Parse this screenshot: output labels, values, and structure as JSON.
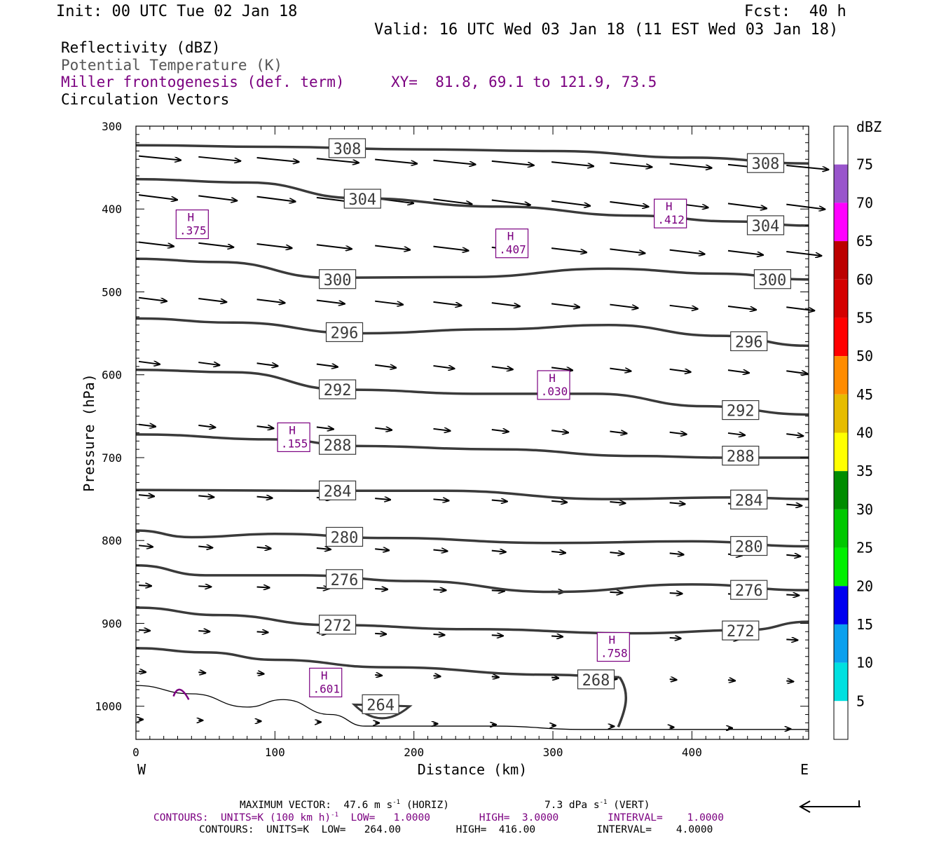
{
  "header": {
    "init": "Init: 00 UTC Tue 02 Jan 18",
    "fcst": "Fcst:  40 h",
    "valid": "Valid: 16 UTC Wed 03 Jan 18 (11 EST Wed 03 Jan 18)"
  },
  "fields": {
    "reflectivity": "Reflectivity (dBZ)",
    "theta": "Potential Temperature (K)",
    "miller": "Miller frontogenesis (def. term)",
    "xy": "XY=  81.8, 69.1 to 121.9, 73.5",
    "circulation": "Circulation Vectors"
  },
  "footer": {
    "maxvec_text": "MAXIMUM VECTOR:  47.6 m s",
    "maxvec_sup1": "-1",
    "maxvec_mid": " (HORIZ)",
    "maxvec_vert": "7.3 dPa s",
    "maxvec_sup2": "-1",
    "maxvec_end": " (VERT)",
    "contours_fg": "CONTOURS:  UNITS=K (100 km h)",
    "contours_fg_sup": "-1",
    "contours_fg_rest": "  LOW=   1.0000        HIGH=  3.0000        INTERVAL=    1.0000",
    "contours_th": "CONTOURS:  UNITS=K  LOW=   264.00         HIGH=  416.00          INTERVAL=    4.0000"
  },
  "chart_data": {
    "type": "cross-section",
    "xlabel": "Distance (km)",
    "ylabel": "Pressure (hPa)",
    "x_left_label": "W",
    "x_right_label": "E",
    "xlim": [
      0,
      484
    ],
    "ylim": [
      1040,
      300
    ],
    "x_ticks": [
      0,
      100,
      200,
      300,
      400
    ],
    "y_ticks": [
      300,
      400,
      500,
      600,
      700,
      800,
      900,
      1000
    ],
    "colorbar": {
      "unit": "dBZ",
      "levels": [
        5,
        10,
        15,
        20,
        25,
        30,
        35,
        40,
        45,
        50,
        55,
        60,
        65,
        70,
        75
      ],
      "colors": [
        "#ffffff",
        "#00e0e0",
        "#0ca0ee",
        "#0000f0",
        "#00f000",
        "#00c800",
        "#008c00",
        "#ffff00",
        "#e6bc00",
        "#ff8c00",
        "#ff0000",
        "#d40000",
        "#bc0000",
        "#ff00ff",
        "#9955cc"
      ]
    },
    "theta_labels": [
      {
        "label": "308",
        "x": 152,
        "p": 327
      },
      {
        "label": "308",
        "x": 453,
        "p": 345
      },
      {
        "label": "304",
        "x": 163,
        "p": 388
      },
      {
        "label": "304",
        "x": 453,
        "p": 420
      },
      {
        "label": "300",
        "x": 145,
        "p": 485
      },
      {
        "label": "300",
        "x": 458,
        "p": 485
      },
      {
        "label": "296",
        "x": 150,
        "p": 549
      },
      {
        "label": "296",
        "x": 441,
        "p": 560
      },
      {
        "label": "292",
        "x": 145,
        "p": 618
      },
      {
        "label": "292",
        "x": 435,
        "p": 643
      },
      {
        "label": "288",
        "x": 145,
        "p": 685
      },
      {
        "label": "288",
        "x": 435,
        "p": 698
      },
      {
        "label": "284",
        "x": 145,
        "p": 740
      },
      {
        "label": "284",
        "x": 441,
        "p": 751
      },
      {
        "label": "280",
        "x": 150,
        "p": 796
      },
      {
        "label": "280",
        "x": 441,
        "p": 807
      },
      {
        "label": "276",
        "x": 150,
        "p": 847
      },
      {
        "label": "276",
        "x": 441,
        "p": 860
      },
      {
        "label": "272",
        "x": 145,
        "p": 902
      },
      {
        "label": "272",
        "x": 435,
        "p": 909
      },
      {
        "label": "268",
        "x": 331,
        "p": 968
      },
      {
        "label": "264",
        "x": 176,
        "p": 998
      }
    ],
    "frontogenesis_maxima": [
      {
        "label": "H",
        "value": ".375",
        "x": 41,
        "p": 418
      },
      {
        "label": "H",
        "value": ".407",
        "x": 271,
        "p": 441
      },
      {
        "label": "H",
        "value": ".412",
        "x": 385,
        "p": 405
      },
      {
        "label": "H",
        "value": ".030",
        "x": 301,
        "p": 612
      },
      {
        "label": "H",
        "value": ".155",
        "x": 114,
        "p": 675
      },
      {
        "label": "H",
        "value": ".758",
        "x": 344,
        "p": 928
      },
      {
        "label": "H",
        "value": ".601",
        "x": 137,
        "p": 971
      }
    ]
  }
}
